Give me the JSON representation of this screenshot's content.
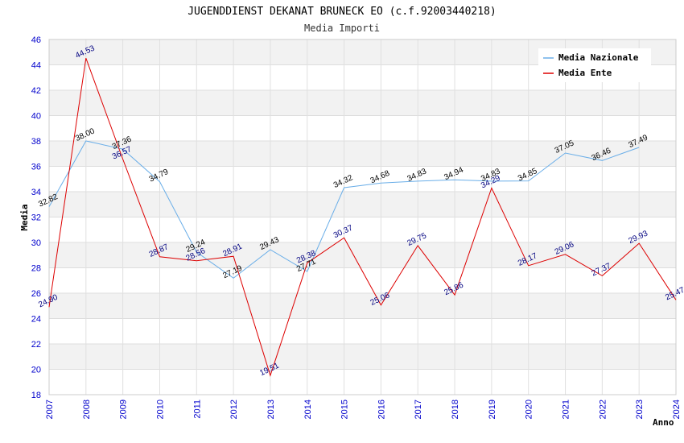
{
  "chart_data": {
    "type": "line",
    "title": "JUGENDDIENST DEKANAT BRUNECK EO (c.f.92003440218)",
    "subtitle": "Media Importi",
    "xlabel": "Anno",
    "ylabel": "Media",
    "ylim": [
      18,
      46
    ],
    "yticks": [
      "18",
      "20",
      "22",
      "24",
      "26",
      "28",
      "30",
      "32",
      "34",
      "36",
      "38",
      "40",
      "42",
      "44",
      "46"
    ],
    "categories": [
      "2007",
      "2008",
      "2009",
      "2010",
      "2011",
      "2012",
      "2013",
      "2014",
      "2015",
      "2016",
      "2017",
      "2018",
      "2019",
      "2020",
      "2021",
      "2022",
      "2023",
      "2024"
    ],
    "grid": true,
    "legend_position": "top-right",
    "series": [
      {
        "name": "Media Nazionale",
        "color": "#6aaee8",
        "values": [
          32.82,
          38.0,
          37.36,
          34.79,
          29.24,
          27.19,
          29.43,
          27.71,
          34.32,
          34.68,
          34.83,
          34.94,
          34.83,
          34.85,
          37.05,
          36.46,
          37.49,
          null
        ],
        "labels": [
          "32.82",
          "38.00",
          "37.36",
          "34.79",
          "29.24",
          "27.19",
          "29.43",
          "27.71",
          "34.32",
          "34.68",
          "34.83",
          "34.94",
          "34.83",
          "34.85",
          "37.05",
          "36.46",
          "37.49",
          ""
        ]
      },
      {
        "name": "Media Ente",
        "color": "#dd0000",
        "values": [
          24.9,
          44.53,
          36.57,
          28.87,
          28.56,
          28.91,
          19.51,
          28.38,
          30.37,
          25.06,
          29.75,
          25.86,
          34.29,
          28.17,
          29.06,
          27.37,
          29.93,
          25.47
        ],
        "labels": [
          "24.90",
          "44.53",
          "36.57",
          "28.87",
          "28.56",
          "28.91",
          "19.51",
          "28.38",
          "30.37",
          "25.06",
          "29.75",
          "25.86",
          "34.29",
          "28.17",
          "29.06",
          "27.37",
          "29.93",
          "25.47"
        ]
      }
    ]
  }
}
